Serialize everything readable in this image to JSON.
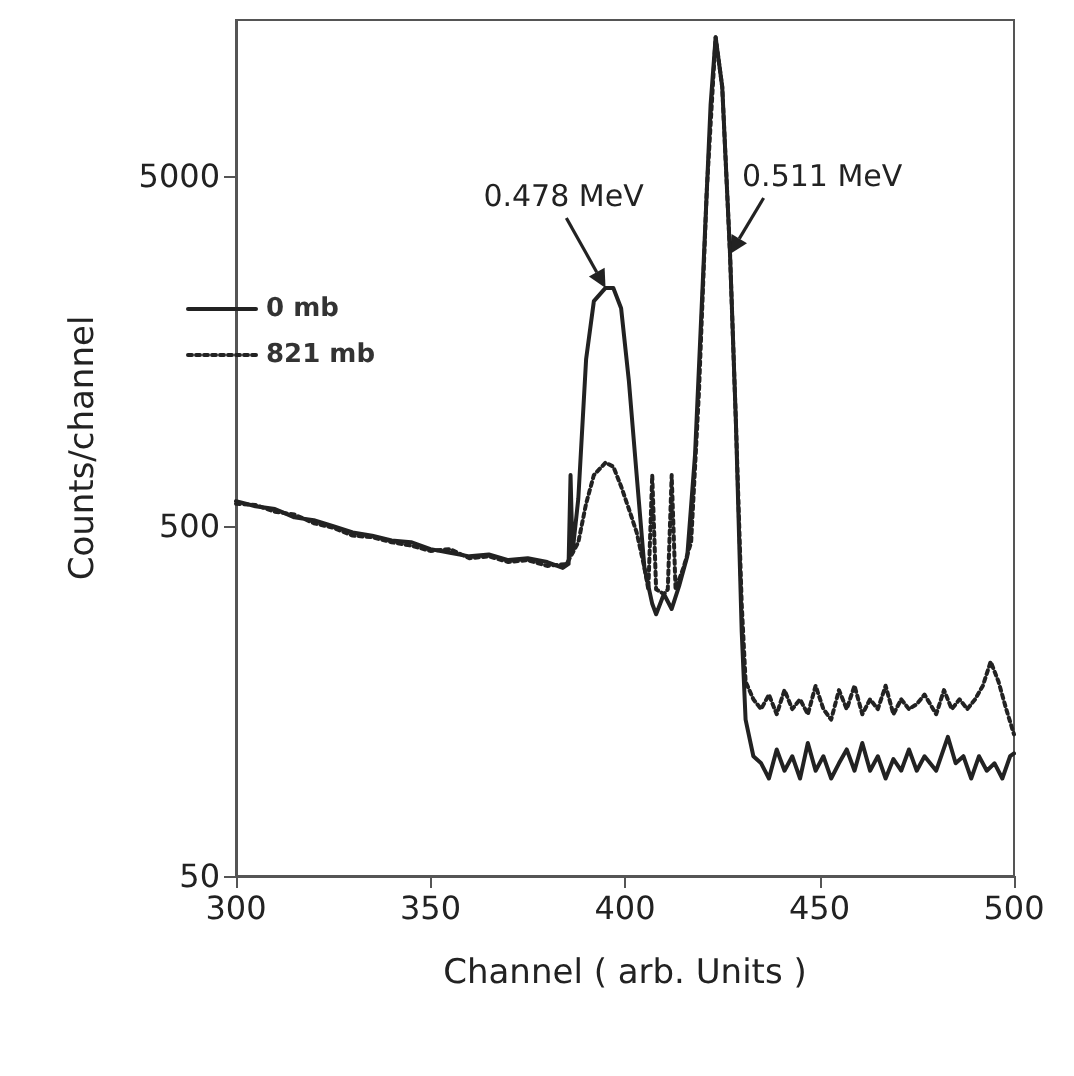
{
  "chart_data": {
    "type": "line",
    "xlabel": "Channel ( arb. Units )",
    "ylabel": "Counts/channel",
    "xlim": [
      300,
      500
    ],
    "xticks": [
      300,
      350,
      400,
      450,
      500
    ],
    "ylim": [
      50,
      14000
    ],
    "yticks": [
      50,
      500,
      5000
    ],
    "log": "y",
    "grid": false,
    "legend": "top left",
    "marker": "none",
    "annotations": [
      {
        "text": "0.478 MeV",
        "x": 395,
        "y": 2400
      },
      {
        "text": "0.511 MeV",
        "x": 427,
        "y": 3000
      }
    ],
    "series": [
      {
        "name": "0 mb",
        "color": "#222222",
        "line_style": "solid",
        "x": [
          300,
          305,
          310,
          315,
          320,
          325,
          330,
          335,
          340,
          345,
          350,
          355,
          360,
          365,
          370,
          375,
          380,
          384,
          385.5,
          386,
          386.5,
          388,
          390,
          392,
          395,
          397,
          399,
          401,
          403,
          405,
          407,
          408,
          410,
          412,
          414,
          416,
          418,
          420,
          422,
          423.3,
          425,
          427,
          428.5,
          430,
          431,
          433,
          435,
          437,
          439,
          441,
          443,
          445,
          447,
          449,
          451,
          453,
          455,
          457,
          459,
          461,
          463,
          465,
          467,
          469,
          471,
          473,
          475,
          477,
          480,
          483,
          485,
          487,
          489,
          491,
          493,
          495,
          497,
          499,
          500
        ],
        "values": [
          590,
          570,
          560,
          530,
          520,
          500,
          480,
          470,
          455,
          450,
          430,
          420,
          410,
          415,
          400,
          405,
          395,
          380,
          390,
          700,
          420,
          600,
          1500,
          2200,
          2400,
          2400,
          2100,
          1300,
          700,
          380,
          300,
          280,
          320,
          290,
          340,
          410,
          800,
          2500,
          8000,
          12500,
          9000,
          3000,
          1000,
          250,
          140,
          110,
          105,
          95,
          115,
          100,
          110,
          95,
          120,
          100,
          110,
          95,
          105,
          115,
          100,
          120,
          100,
          110,
          95,
          108,
          100,
          115,
          100,
          110,
          100,
          125,
          105,
          110,
          95,
          110,
          100,
          105,
          95,
          110,
          112
        ]
      },
      {
        "name": "821 mb",
        "color": "#222222",
        "line_style": "dotted",
        "x": [
          300,
          305,
          310,
          315,
          320,
          325,
          330,
          335,
          340,
          345,
          350,
          355,
          360,
          365,
          370,
          375,
          380,
          385,
          388,
          390,
          392,
          395,
          397,
          399,
          401,
          403,
          405,
          406,
          407,
          408,
          410,
          411,
          412,
          413,
          415,
          417,
          419,
          421,
          423.3,
          425,
          427,
          428.5,
          430,
          431,
          433,
          435,
          437,
          439,
          441,
          443,
          445,
          447,
          449,
          451,
          453,
          455,
          457,
          459,
          461,
          463,
          465,
          467,
          469,
          471,
          473,
          475,
          477,
          480,
          482,
          484,
          486,
          488,
          490,
          492,
          494,
          496,
          498,
          500
        ],
        "values": [
          580,
          575,
          550,
          540,
          510,
          495,
          470,
          465,
          450,
          440,
          425,
          430,
          405,
          410,
          395,
          400,
          385,
          390,
          450,
          580,
          700,
          760,
          740,
          650,
          560,
          480,
          380,
          330,
          700,
          330,
          320,
          330,
          700,
          330,
          380,
          450,
          1200,
          4500,
          12500,
          9000,
          3000,
          1000,
          300,
          180,
          160,
          150,
          165,
          145,
          170,
          150,
          160,
          145,
          175,
          150,
          140,
          170,
          150,
          175,
          145,
          160,
          150,
          175,
          145,
          160,
          150,
          155,
          165,
          145,
          170,
          150,
          160,
          150,
          160,
          175,
          205,
          180,
          150,
          127
        ]
      }
    ]
  }
}
